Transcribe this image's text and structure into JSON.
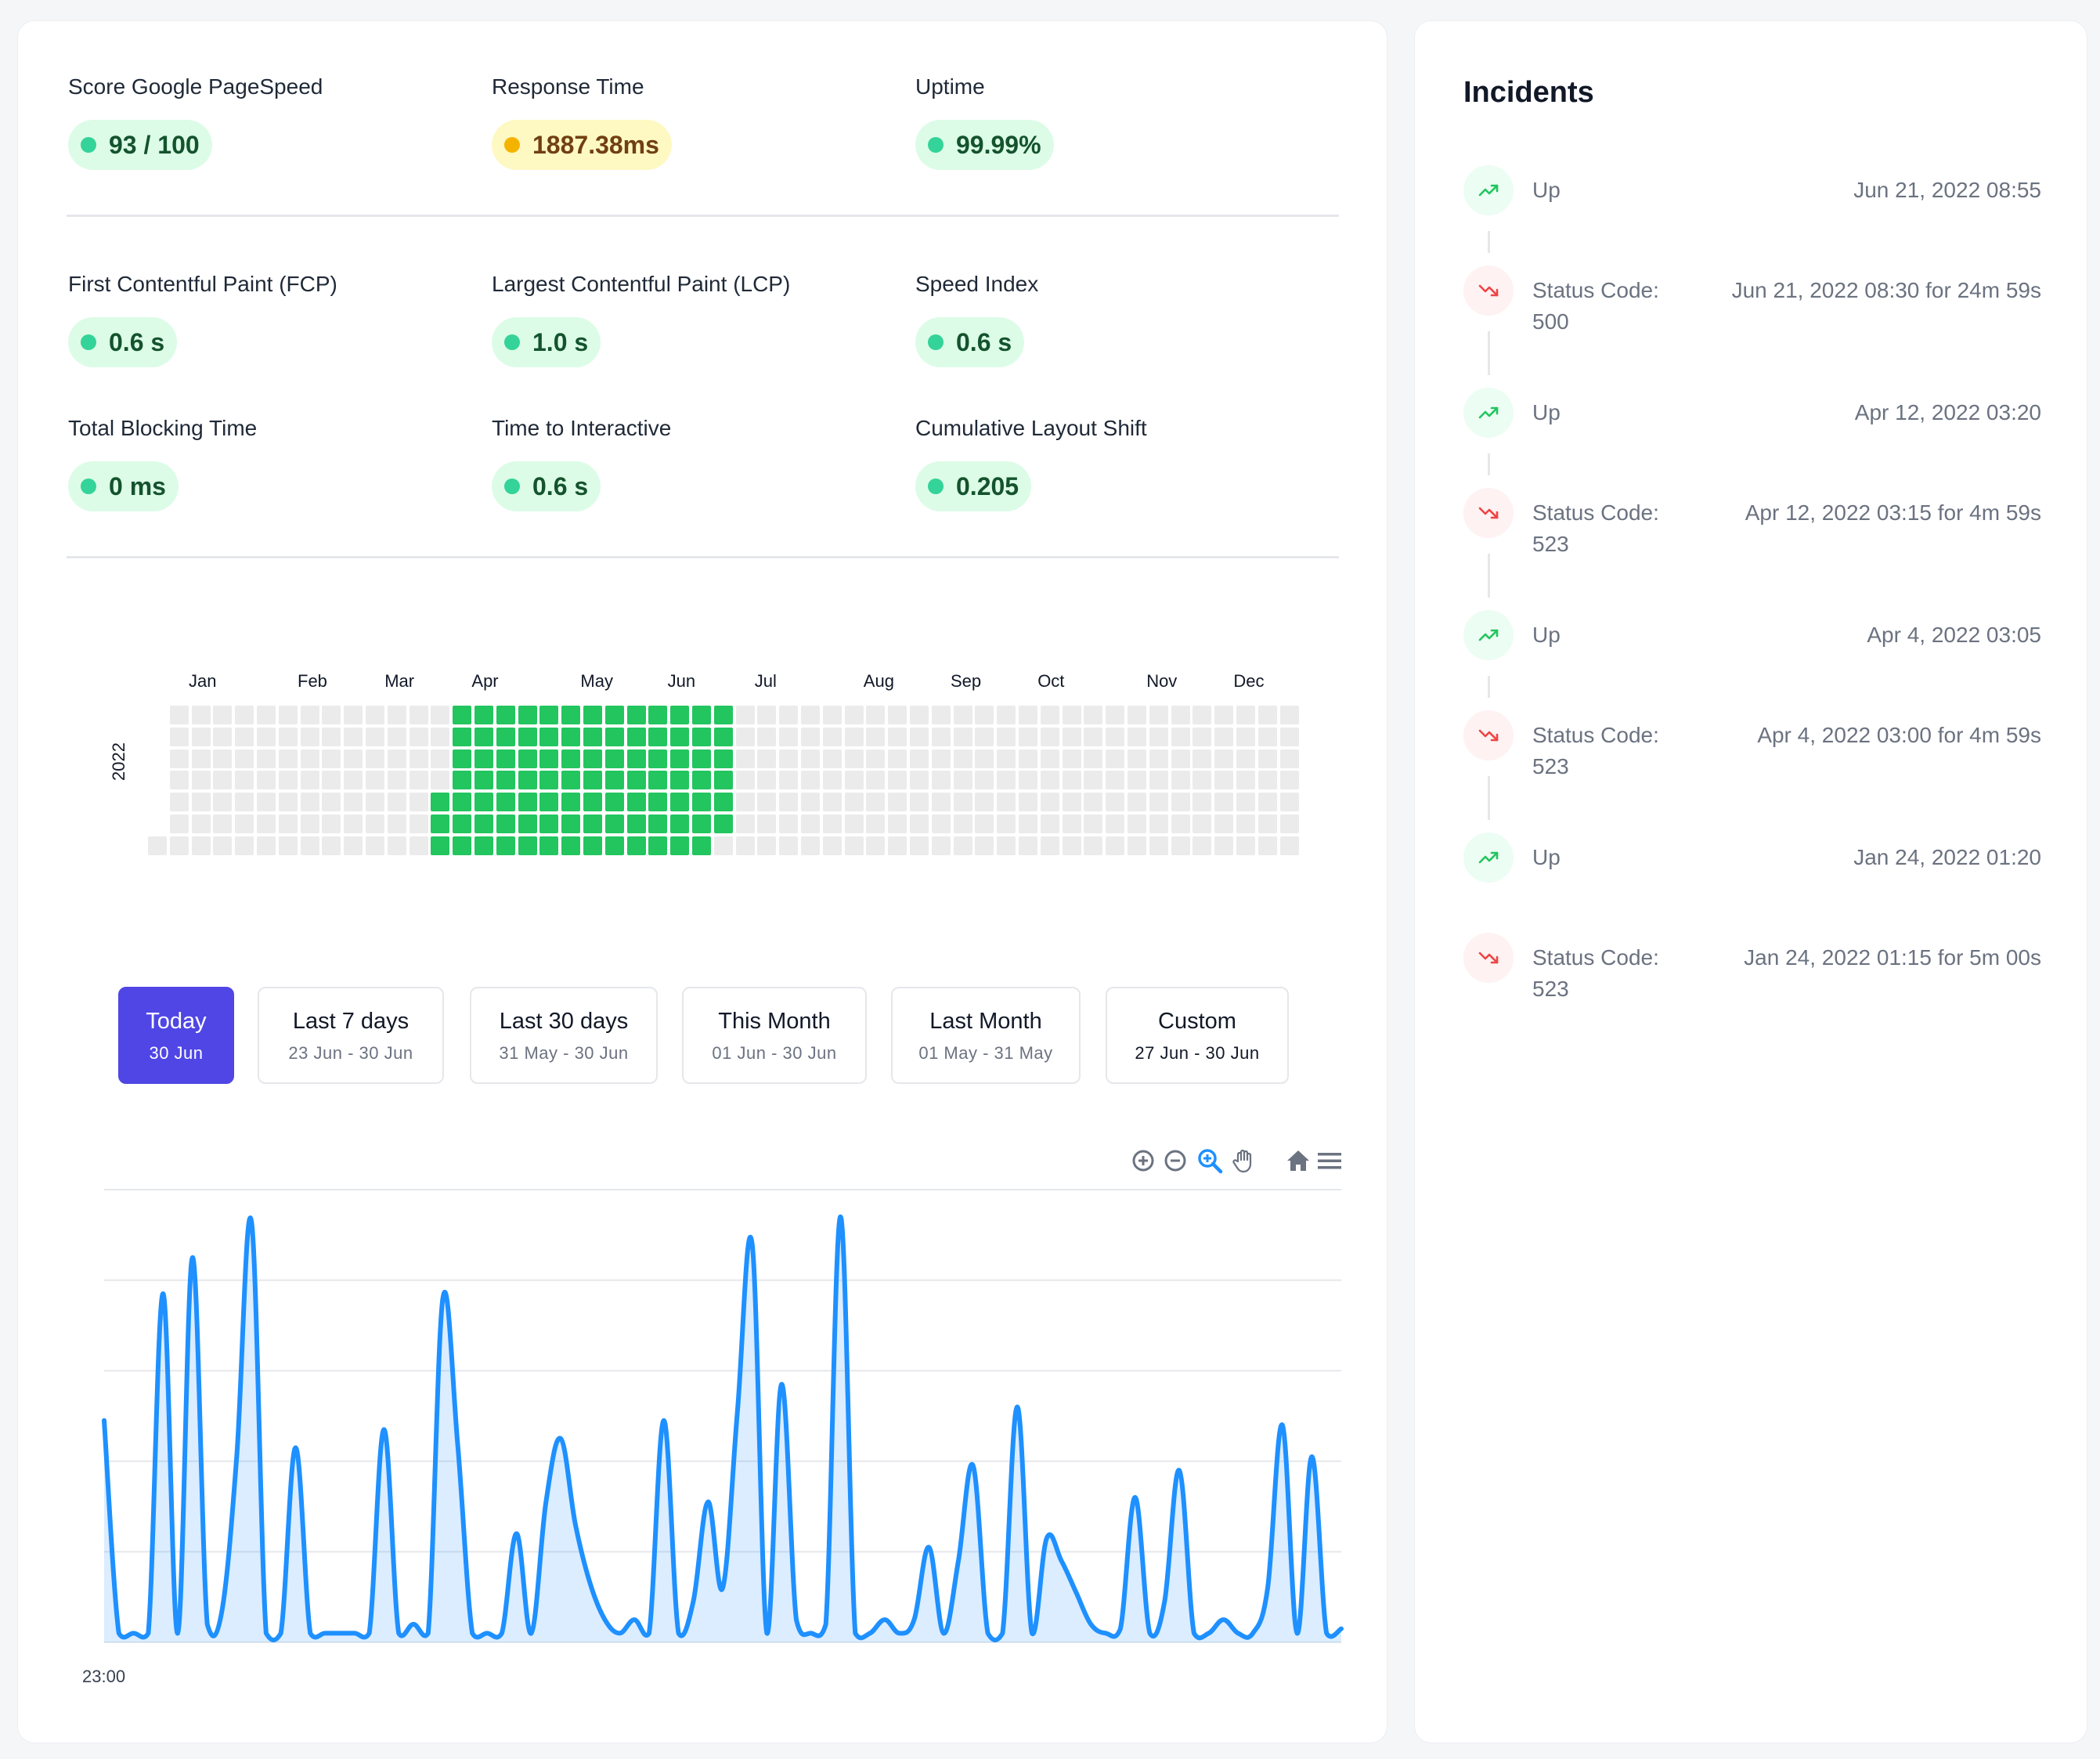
{
  "metrics_top": [
    {
      "id": "pagespeed",
      "label": "Score Google PageSpeed",
      "value": "93 / 100",
      "status": "good"
    },
    {
      "id": "response",
      "label": "Response Time",
      "value": "1887.38ms",
      "status": "warn"
    },
    {
      "id": "uptime",
      "label": "Uptime",
      "value": "99.99%",
      "status": "good"
    }
  ],
  "metrics_vitals": [
    {
      "id": "fcp",
      "label": "First Contentful Paint (FCP)",
      "value": "0.6 s",
      "status": "good"
    },
    {
      "id": "lcp",
      "label": "Largest Contentful Paint (LCP)",
      "value": "1.0 s",
      "status": "good"
    },
    {
      "id": "speed-index",
      "label": "Speed Index",
      "value": "0.6 s",
      "status": "good"
    },
    {
      "id": "tbt",
      "label": "Total Blocking Time",
      "value": "0 ms",
      "status": "good"
    },
    {
      "id": "tti",
      "label": "Time to Interactive",
      "value": "0.6 s",
      "status": "good"
    },
    {
      "id": "cls",
      "label": "Cumulative Layout Shift",
      "value": "0.205",
      "status": "good"
    }
  ],
  "heatmap": {
    "year": "2022",
    "months": [
      "Jan",
      "Feb",
      "Mar",
      "Apr",
      "May",
      "Jun",
      "Jul",
      "Aug",
      "Sep",
      "Oct",
      "Nov",
      "Dec"
    ],
    "active_first_day_of_year": 89,
    "active_last_day_of_year": 181,
    "colors": {
      "active": "#22c55e",
      "inactive": "#ebebeb"
    }
  },
  "ranges": [
    {
      "id": "today",
      "title": "Today",
      "sub": "30 Jun",
      "active": true
    },
    {
      "id": "last-7-days",
      "title": "Last 7 days",
      "sub": "23 Jun - 30 Jun",
      "active": false
    },
    {
      "id": "last-30-days",
      "title": "Last 30 days",
      "sub": "31 May - 30 Jun",
      "active": false
    },
    {
      "id": "this-month",
      "title": "This Month",
      "sub": "01 Jun - 30 Jun",
      "active": false
    },
    {
      "id": "last-month",
      "title": "Last Month",
      "sub": "01 May - 31 May",
      "active": false
    },
    {
      "id": "custom",
      "title": "Custom",
      "sub": "27 Jun - 30 Jun",
      "active": false
    }
  ],
  "toolbar": [
    "zoom-in-icon",
    "zoom-out-icon",
    "selection-zoom-icon",
    "pan-hand-icon",
    "reset-home-icon",
    "menu-icon"
  ],
  "chart_data": {
    "type": "area",
    "x_tick_labels": [
      "23:00"
    ],
    "y_relative": [
      0.49,
      0.02,
      0.02,
      0.02,
      0.77,
      0.02,
      0.85,
      0.04,
      0.07,
      0.41,
      0.93,
      0.02,
      0.02,
      0.43,
      0.02,
      0.02,
      0.02,
      0.02,
      0.02,
      0.47,
      0.02,
      0.04,
      0.02,
      0.76,
      0.44,
      0.02,
      0.02,
      0.02,
      0.24,
      0.02,
      0.31,
      0.45,
      0.26,
      0.13,
      0.05,
      0.02,
      0.05,
      0.02,
      0.49,
      0.02,
      0.09,
      0.31,
      0.12,
      0.51,
      0.88,
      0.02,
      0.57,
      0.05,
      0.02,
      0.04,
      0.94,
      0.02,
      0.02,
      0.05,
      0.02,
      0.05,
      0.21,
      0.02,
      0.18,
      0.39,
      0.02,
      0.02,
      0.52,
      0.02,
      0.23,
      0.18,
      0.11,
      0.04,
      0.02,
      0.03,
      0.32,
      0.02,
      0.09,
      0.38,
      0.02,
      0.02,
      0.05,
      0.02,
      0.02,
      0.12,
      0.48,
      0.02,
      0.41,
      0.02,
      0.03
    ]
  },
  "incidents": {
    "title": "Incidents",
    "items": [
      {
        "type": "up",
        "label": "Up",
        "time": "Jun 21, 2022 08:55"
      },
      {
        "type": "down",
        "label": "Status Code: 500",
        "time": "Jun 21, 2022 08:30 for 24m 59s"
      },
      {
        "type": "up",
        "label": "Up",
        "time": "Apr 12, 2022 03:20"
      },
      {
        "type": "down",
        "label": "Status Code: 523",
        "time": "Apr 12, 2022 03:15 for 4m 59s"
      },
      {
        "type": "up",
        "label": "Up",
        "time": "Apr 4, 2022 03:05"
      },
      {
        "type": "down",
        "label": "Status Code: 523",
        "time": "Apr 4, 2022 03:00 for 4m 59s"
      },
      {
        "type": "up",
        "label": "Up",
        "time": "Jan 24, 2022 01:20"
      },
      {
        "type": "down",
        "label": "Status Code: 523",
        "time": "Jan 24, 2022 01:15 for 5m 00s"
      }
    ]
  }
}
